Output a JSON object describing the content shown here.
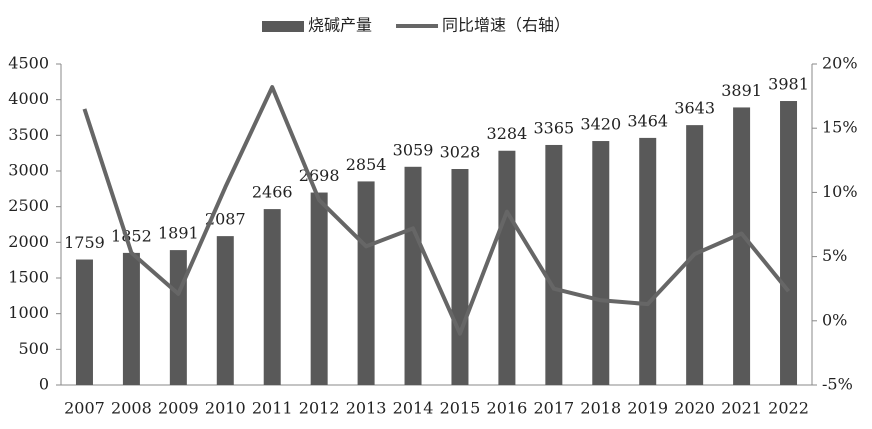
{
  "chart_data": {
    "type": "bar",
    "categories": [
      "2007",
      "2008",
      "2009",
      "2010",
      "2011",
      "2012",
      "2013",
      "2014",
      "2015",
      "2016",
      "2017",
      "2018",
      "2019",
      "2020",
      "2021",
      "2022"
    ],
    "series": [
      {
        "name": "烧碱产量",
        "type": "bar",
        "color": "#595959",
        "values": [
          1759,
          1852,
          1891,
          2087,
          2466,
          2698,
          2854,
          3059,
          3028,
          3284,
          3365,
          3420,
          3464,
          3643,
          3891,
          3981
        ]
      },
      {
        "name": "同比增速（右轴）",
        "type": "line",
        "axis": "y2",
        "color": "#666666",
        "values": [
          16.5,
          5.3,
          2.1,
          10.4,
          18.2,
          9.4,
          5.8,
          7.2,
          -1.0,
          8.5,
          2.5,
          1.6,
          1.3,
          5.2,
          6.8,
          2.3
        ]
      }
    ],
    "ylim": [
      0,
      4500
    ],
    "yticks": [
      0,
      500,
      1000,
      1500,
      2000,
      2500,
      3000,
      3500,
      4000,
      4500
    ],
    "y2lim": [
      -5,
      20
    ],
    "y2ticks": [
      {
        "value": -5,
        "label": "-5%"
      },
      {
        "value": 0,
        "label": "0%"
      },
      {
        "value": 5,
        "label": "5%"
      },
      {
        "value": 10,
        "label": "10%"
      },
      {
        "value": 15,
        "label": "15%"
      },
      {
        "value": 20,
        "label": "20%"
      }
    ],
    "grid": false,
    "legend": "top"
  }
}
